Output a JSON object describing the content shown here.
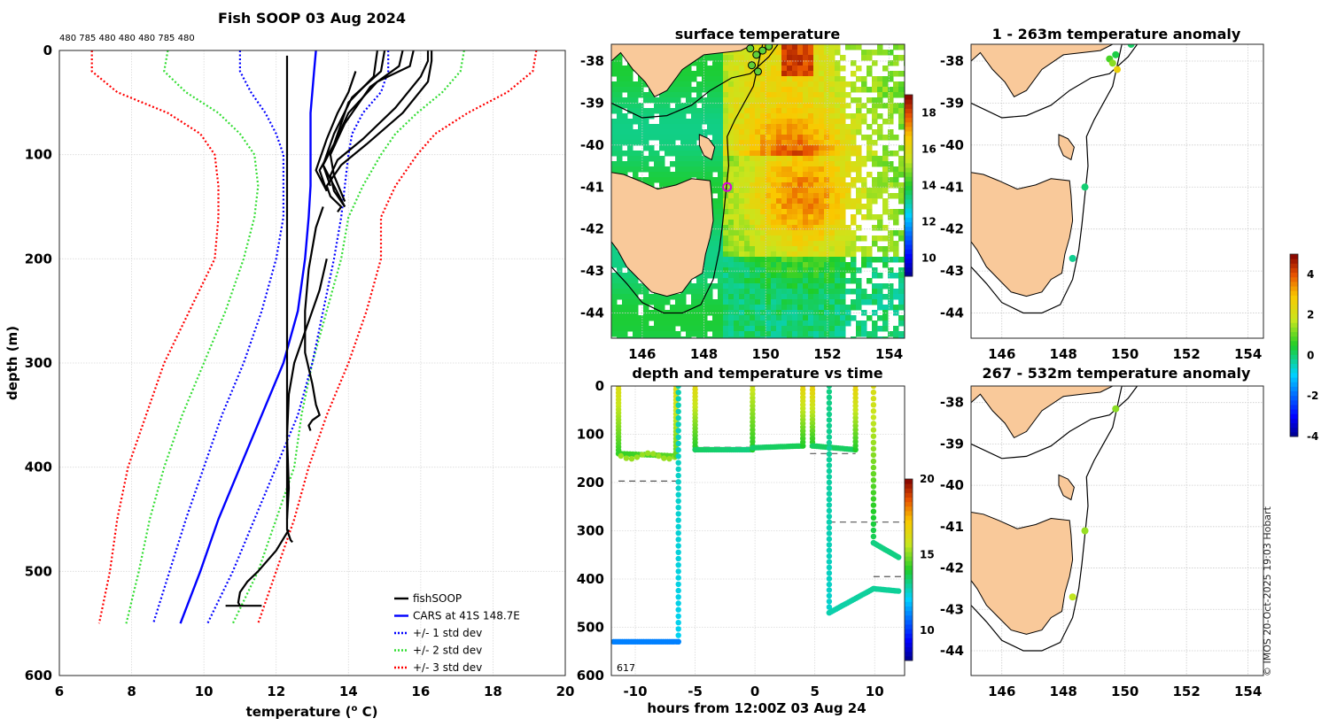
{
  "chart_data": [
    {
      "id": "profile",
      "type": "line",
      "title": "Fish SOOP 03 Aug 2024",
      "top_labels": "480 785 480 480 480 785 480",
      "xlabel": "temperature (",
      "xlabel_sup": "o",
      "xlabel_suffix": " C)",
      "ylabel": "depth (m)",
      "xlim": [
        6,
        20
      ],
      "ylim": [
        0,
        600
      ],
      "xticks": [
        6,
        8,
        10,
        12,
        14,
        16,
        18,
        20
      ],
      "yticks": [
        0,
        100,
        200,
        300,
        400,
        500,
        600
      ],
      "legend_position": "bottom-right",
      "series": [
        {
          "name": "fishSOOP",
          "color": "#000000",
          "style": "solid"
        },
        {
          "name": "CARS at 41S 148.7E",
          "color": "#0000ff",
          "style": "solid"
        },
        {
          "name": "+/- 1 std dev",
          "color": "#0000ff",
          "style": "dotted"
        },
        {
          "name": "+/- 2 std dev",
          "color": "#33dd33",
          "style": "dotted"
        },
        {
          "name": "+/- 3 std dev",
          "color": "#ff0000",
          "style": "dotted"
        }
      ],
      "depths": [
        0,
        20,
        40,
        60,
        80,
        100,
        130,
        160,
        200,
        250,
        300,
        350,
        400,
        450,
        500,
        550
      ],
      "cars_mean": [
        13.1,
        13.05,
        13.0,
        12.95,
        12.95,
        12.95,
        12.95,
        12.9,
        12.8,
        12.6,
        12.2,
        11.6,
        11.0,
        10.4,
        9.9,
        9.35
      ],
      "std_minus1": [
        11.0,
        11.0,
        11.3,
        11.7,
        12.0,
        12.2,
        12.2,
        12.2,
        12.0,
        11.6,
        11.1,
        10.5,
        10.0,
        9.5,
        9.05,
        8.6
      ],
      "std_plus1": [
        15.1,
        15.1,
        14.9,
        14.4,
        14.1,
        14.0,
        13.9,
        13.8,
        13.6,
        13.3,
        13.0,
        12.6,
        12.0,
        11.4,
        10.8,
        10.1
      ],
      "std_minus2": [
        9.0,
        8.9,
        9.5,
        10.4,
        11.0,
        11.4,
        11.5,
        11.4,
        11.1,
        10.6,
        10.0,
        9.4,
        8.9,
        8.5,
        8.2,
        7.85
      ],
      "std_plus2": [
        17.2,
        17.1,
        16.6,
        15.9,
        15.3,
        14.9,
        14.4,
        14.0,
        13.8,
        13.4,
        13.0,
        12.7,
        12.5,
        12.0,
        11.5,
        10.8
      ],
      "std_minus3": [
        6.9,
        6.9,
        7.6,
        9.0,
        9.9,
        10.3,
        10.4,
        10.4,
        10.3,
        9.6,
        8.9,
        8.4,
        7.9,
        7.6,
        7.4,
        7.1
      ],
      "std_plus3": [
        19.2,
        19.1,
        18.4,
        17.3,
        16.4,
        15.9,
        15.3,
        14.9,
        14.9,
        14.5,
        14.0,
        13.4,
        12.9,
        12.5,
        12.0,
        11.5
      ],
      "casts": [
        {
          "t": [
            12.3,
            12.3,
            12.3,
            12.3,
            12.3,
            12.3,
            12.3,
            12.3,
            12.3,
            12.3,
            12.3,
            12.3,
            12.3,
            12.3,
            12.3,
            12.3,
            12.4,
            12.45
          ],
          "d": [
            5,
            40,
            80,
            120,
            160,
            200,
            240,
            280,
            320,
            360,
            400,
            420,
            430,
            440,
            450,
            460,
            470,
            472
          ]
        },
        {
          "t": [
            16.3,
            16.3,
            16.2,
            15.5,
            14.5,
            13.8,
            13.4,
            13.5,
            13.8,
            13.7
          ],
          "d": [
            0,
            10,
            30,
            60,
            90,
            110,
            130,
            140,
            150,
            155
          ]
        },
        {
          "t": [
            16.2,
            16.2,
            16.0,
            15.3,
            14.4,
            13.7,
            13.5,
            13.6,
            13.9
          ],
          "d": [
            0,
            10,
            25,
            55,
            85,
            105,
            120,
            135,
            150
          ]
        },
        {
          "t": [
            15.8,
            15.7,
            14.8,
            14.0,
            13.6,
            13.3,
            13.6,
            13.9
          ],
          "d": [
            0,
            15,
            30,
            60,
            90,
            110,
            130,
            150
          ]
        },
        {
          "t": [
            15.5,
            15.4,
            14.6,
            13.9,
            13.5,
            13.6,
            13.9
          ],
          "d": [
            0,
            15,
            35,
            70,
            100,
            120,
            145
          ]
        },
        {
          "t": [
            15.0,
            14.9,
            14.1,
            13.6,
            13.3,
            13.5
          ],
          "d": [
            0,
            20,
            45,
            80,
            110,
            130
          ]
        },
        {
          "t": [
            14.8,
            14.7,
            14.0,
            13.6,
            13.2,
            13.4
          ],
          "d": [
            0,
            25,
            50,
            90,
            115,
            135
          ]
        },
        {
          "t": [
            14.2,
            14.0,
            13.7,
            13.4,
            13.1,
            13.4
          ],
          "d": [
            20,
            40,
            60,
            85,
            115,
            135
          ]
        },
        {
          "t": [
            13.3,
            13.1,
            12.9,
            12.8,
            12.8,
            13.0,
            13.1,
            13.2,
            13.0,
            12.9,
            12.95
          ],
          "d": [
            150,
            170,
            210,
            250,
            290,
            320,
            340,
            350,
            355,
            360,
            365
          ]
        },
        {
          "t": [
            13.4,
            13.2,
            12.8,
            12.5,
            12.35,
            12.3,
            12.35,
            12.3
          ],
          "d": [
            200,
            230,
            270,
            300,
            330,
            370,
            420,
            450
          ]
        },
        {
          "t": [
            12.35,
            12.0,
            11.5,
            11.2,
            11.0,
            10.95,
            11.0
          ],
          "d": [
            460,
            480,
            500,
            510,
            520,
            530,
            533
          ]
        },
        {
          "t": [
            10.6,
            11.6
          ],
          "d": [
            533,
            533
          ]
        }
      ]
    },
    {
      "id": "surface_map",
      "type": "heatmap",
      "title": "surface temperature",
      "xlim": [
        145,
        154.5
      ],
      "ylim": [
        -44.6,
        -37.6
      ],
      "xticks": [
        146,
        148,
        150,
        152,
        154
      ],
      "yticks": [
        -38,
        -39,
        -40,
        -41,
        -42,
        -43,
        -44
      ],
      "colorbar": {
        "min": 9,
        "max": 19,
        "ticks": [
          10,
          12,
          14,
          16,
          18
        ]
      }
    },
    {
      "id": "time_series",
      "type": "scatter",
      "title": "depth and temperature vs time",
      "xlabel": "hours from 12:00Z 03 Aug 24",
      "xlim": [
        -12,
        12.5
      ],
      "ylim": [
        0,
        600
      ],
      "xticks": [
        -10,
        -5,
        0,
        5,
        10
      ],
      "yticks": [
        0,
        100,
        200,
        300,
        400,
        500,
        600
      ],
      "annotation": "617",
      "colorbar": {
        "min": 8,
        "max": 20,
        "ticks": [
          10,
          15,
          20
        ]
      },
      "dashes": [
        [
          -11.4,
          -6.6,
          197
        ],
        [
          -5.2,
          4.6,
          127
        ],
        [
          4.6,
          8.4,
          140
        ],
        [
          6.2,
          12.5,
          282
        ],
        [
          9.9,
          12.5,
          395
        ]
      ]
    },
    {
      "id": "anomaly_shallow",
      "type": "scatter",
      "title": "1 - 263m temperature anomaly",
      "xlim": [
        145,
        154.5
      ],
      "ylim": [
        -44.6,
        -37.6
      ],
      "xticks": [
        146,
        148,
        150,
        152,
        154
      ],
      "yticks": [
        -38,
        -39,
        -40,
        -41,
        -42,
        -43,
        -44
      ],
      "points": [
        {
          "lon": 150.2,
          "lat": -37.6,
          "anom": 0.1
        },
        {
          "lon": 149.7,
          "lat": -37.85,
          "anom": 0.3
        },
        {
          "lon": 149.5,
          "lat": -37.95,
          "anom": 0.8
        },
        {
          "lon": 149.6,
          "lat": -38.05,
          "anom": 1.3
        },
        {
          "lon": 149.75,
          "lat": -38.2,
          "anom": 2.6
        },
        {
          "lon": 148.7,
          "lat": -41.0,
          "anom": 0.0
        },
        {
          "lon": 148.3,
          "lat": -42.7,
          "anom": -0.2
        }
      ]
    },
    {
      "id": "anomaly_deep",
      "type": "scatter",
      "title": "267 - 532m temperature anomaly",
      "xlim": [
        145,
        154.5
      ],
      "ylim": [
        -44.6,
        -37.6
      ],
      "xticks": [
        146,
        148,
        150,
        152,
        154
      ],
      "yticks": [
        -38,
        -39,
        -40,
        -41,
        -42,
        -43,
        -44
      ],
      "points": [
        {
          "lon": 149.7,
          "lat": -38.15,
          "anom": 1.3
        },
        {
          "lon": 148.7,
          "lat": -41.1,
          "anom": 1.4
        },
        {
          "lon": 148.3,
          "lat": -42.7,
          "anom": 1.7
        }
      ]
    },
    {
      "id": "anomaly_colorbar",
      "type": "heatmap",
      "min": -4,
      "max": 5,
      "ticks": [
        4,
        2,
        0,
        -2,
        -4
      ]
    }
  ],
  "watermark": "© IMOS 20-Oct-2025 19:03 Hobart"
}
